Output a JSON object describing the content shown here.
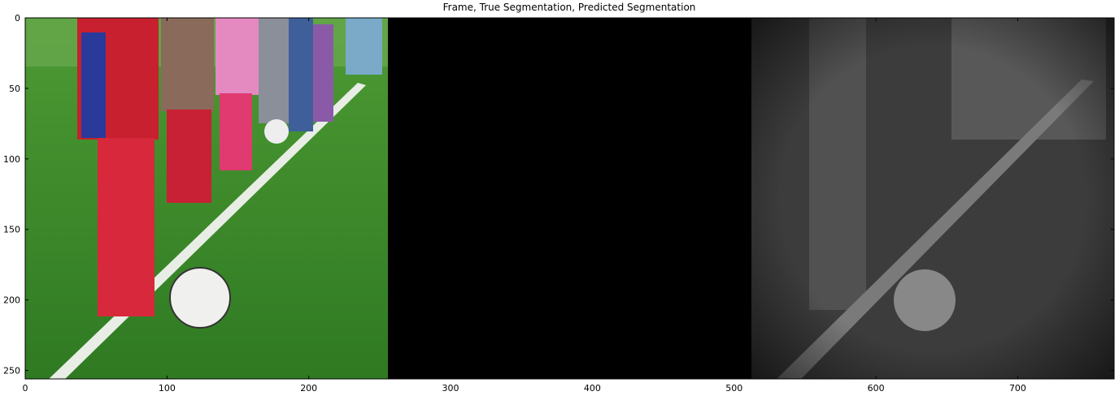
{
  "chart_data": {
    "type": "image",
    "title": "Frame, True Segmentation, Predicted Segmentation",
    "xlim": [
      0,
      768
    ],
    "ylim": [
      256,
      0
    ],
    "xticks": [
      0,
      100,
      200,
      300,
      400,
      500,
      600,
      700
    ],
    "yticks": [
      0,
      50,
      100,
      150,
      200,
      250
    ]
  }
}
